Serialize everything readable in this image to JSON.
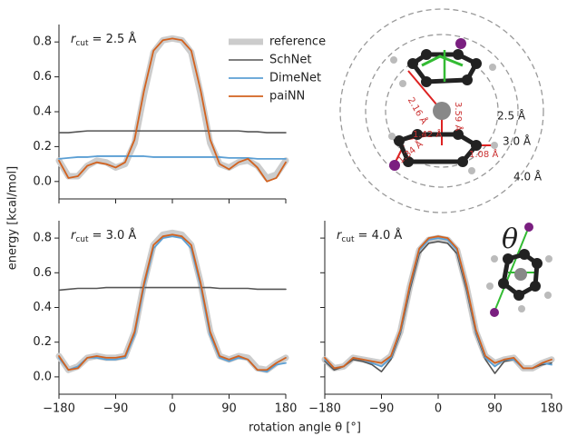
{
  "figure": {
    "ylabel": "energy [kcal/mol]",
    "xlabel": "rotation angle θ [°]",
    "legend_position": "upper right"
  },
  "diagram": {
    "circle_labels": [
      "2.5 Å",
      "3.0 Å",
      "4.0 Å"
    ],
    "bond_labels": [
      "2.16 Å",
      "3.59 Å",
      "1.42 Å",
      "1.34 Å",
      "1.08 Å"
    ]
  },
  "diagram2": {
    "label": "θ"
  },
  "chart_data": [
    {
      "type": "line",
      "annotation": {
        "symbol": "r",
        "subscript": "cut",
        "text": "= 2.5 Å"
      },
      "x": [
        -180,
        -165,
        -150,
        -135,
        -120,
        -105,
        -90,
        -75,
        -60,
        -45,
        -30,
        -15,
        0,
        15,
        30,
        45,
        60,
        75,
        90,
        105,
        120,
        135,
        150,
        165,
        180
      ],
      "xlim": [
        -180,
        180
      ],
      "ylim": [
        -0.1,
        0.9
      ],
      "xticks": [
        -180,
        -90,
        0,
        90,
        180
      ],
      "xtick_labels": false,
      "yticks": [
        {
          "value": 0,
          "label": "0.0"
        },
        0.2,
        0.4,
        0.6,
        0.8
      ],
      "ytick_labels": true,
      "legend": true,
      "series": [
        {
          "name": "reference",
          "color": "#cccccc",
          "width": 7,
          "values": [
            0.12,
            0.03,
            0.03,
            0.09,
            0.12,
            0.11,
            0.08,
            0.1,
            0.22,
            0.5,
            0.74,
            0.81,
            0.82,
            0.81,
            0.74,
            0.5,
            0.22,
            0.1,
            0.08,
            0.11,
            0.12,
            0.09,
            0.02,
            0.04,
            0.12
          ]
        },
        {
          "name": "SchNet",
          "color": "#555555",
          "width": 1.6,
          "values": [
            0.28,
            0.28,
            0.285,
            0.29,
            0.29,
            0.29,
            0.29,
            0.29,
            0.29,
            0.29,
            0.29,
            0.29,
            0.29,
            0.29,
            0.29,
            0.29,
            0.29,
            0.29,
            0.29,
            0.29,
            0.285,
            0.285,
            0.28,
            0.28,
            0.28
          ]
        },
        {
          "name": "DimeNet",
          "color": "#5b9fd4",
          "width": 1.8,
          "values": [
            0.13,
            0.135,
            0.14,
            0.14,
            0.145,
            0.145,
            0.145,
            0.145,
            0.145,
            0.145,
            0.14,
            0.14,
            0.14,
            0.14,
            0.14,
            0.14,
            0.14,
            0.14,
            0.135,
            0.135,
            0.135,
            0.13,
            0.13,
            0.13,
            0.13
          ]
        },
        {
          "name": "paiNN",
          "color": "#d2621f",
          "width": 1.8,
          "values": [
            0.12,
            0.02,
            0.03,
            0.09,
            0.11,
            0.1,
            0.08,
            0.11,
            0.24,
            0.52,
            0.75,
            0.81,
            0.82,
            0.81,
            0.75,
            0.52,
            0.24,
            0.1,
            0.07,
            0.11,
            0.13,
            0.08,
            0.0,
            0.02,
            0.11
          ]
        }
      ]
    },
    {
      "type": "line",
      "annotation": {
        "symbol": "r",
        "subscript": "cut",
        "text": "= 3.0 Å"
      },
      "x": [
        -180,
        -165,
        -150,
        -135,
        -120,
        -105,
        -90,
        -75,
        -60,
        -45,
        -30,
        -15,
        0,
        15,
        30,
        45,
        60,
        75,
        90,
        105,
        120,
        135,
        150,
        165,
        180
      ],
      "xlim": [
        -180,
        180
      ],
      "ylim": [
        -0.1,
        0.9
      ],
      "xticks": [
        {
          "value": -180,
          "label": "−180"
        },
        {
          "value": -90,
          "label": "−90"
        },
        0,
        90,
        180
      ],
      "xtick_labels": true,
      "yticks": [
        {
          "value": 0,
          "label": "0.0"
        },
        0.2,
        0.4,
        0.6,
        0.8
      ],
      "ytick_labels": true,
      "series": [
        {
          "values": [
            0.12,
            0.04,
            0.06,
            0.11,
            0.12,
            0.11,
            0.11,
            0.12,
            0.26,
            0.54,
            0.76,
            0.82,
            0.83,
            0.82,
            0.76,
            0.54,
            0.26,
            0.12,
            0.1,
            0.12,
            0.11,
            0.05,
            0.04,
            0.08,
            0.11
          ]
        },
        {
          "values": [
            0.5,
            0.505,
            0.51,
            0.51,
            0.51,
            0.515,
            0.515,
            0.515,
            0.515,
            0.515,
            0.515,
            0.515,
            0.515,
            0.515,
            0.515,
            0.515,
            0.515,
            0.51,
            0.51,
            0.51,
            0.51,
            0.505,
            0.505,
            0.505,
            0.505
          ]
        },
        {
          "values": [
            0.11,
            0.04,
            0.06,
            0.11,
            0.11,
            0.1,
            0.1,
            0.11,
            0.24,
            0.52,
            0.74,
            0.8,
            0.81,
            0.8,
            0.74,
            0.52,
            0.24,
            0.11,
            0.09,
            0.11,
            0.1,
            0.04,
            0.03,
            0.07,
            0.08
          ]
        },
        {
          "values": [
            0.12,
            0.04,
            0.05,
            0.11,
            0.12,
            0.11,
            0.11,
            0.12,
            0.26,
            0.54,
            0.76,
            0.81,
            0.82,
            0.81,
            0.76,
            0.54,
            0.26,
            0.12,
            0.1,
            0.12,
            0.1,
            0.04,
            0.04,
            0.08,
            0.11
          ]
        }
      ]
    },
    {
      "type": "line",
      "annotation": {
        "symbol": "r",
        "subscript": "cut",
        "text": "= 4.0 Å"
      },
      "x": [
        -180,
        -165,
        -150,
        -135,
        -120,
        -105,
        -90,
        -75,
        -60,
        -45,
        -30,
        -15,
        0,
        15,
        30,
        45,
        60,
        75,
        90,
        105,
        120,
        135,
        150,
        165,
        180
      ],
      "xlim": [
        -180,
        180
      ],
      "ylim": [
        -0.1,
        0.9
      ],
      "xticks": [
        {
          "value": -180,
          "label": "−180"
        },
        {
          "value": -90,
          "label": "−90"
        },
        0,
        90,
        180
      ],
      "xtick_labels": true,
      "yticks": [
        0,
        0.2,
        0.4,
        0.6,
        0.8
      ],
      "ytick_labels": false,
      "series": [
        {
          "values": [
            0.1,
            0.05,
            0.06,
            0.11,
            0.1,
            0.09,
            0.08,
            0.12,
            0.26,
            0.52,
            0.73,
            0.79,
            0.8,
            0.79,
            0.73,
            0.52,
            0.26,
            0.12,
            0.08,
            0.1,
            0.11,
            0.05,
            0.05,
            0.08,
            0.1
          ]
        },
        {
          "values": [
            0.09,
            0.04,
            0.06,
            0.1,
            0.09,
            0.07,
            0.03,
            0.1,
            0.25,
            0.5,
            0.71,
            0.77,
            0.78,
            0.77,
            0.71,
            0.5,
            0.25,
            0.1,
            0.02,
            0.09,
            0.1,
            0.05,
            0.05,
            0.07,
            0.08
          ]
        },
        {
          "values": [
            0.1,
            0.05,
            0.06,
            0.11,
            0.1,
            0.08,
            0.06,
            0.11,
            0.26,
            0.52,
            0.73,
            0.79,
            0.8,
            0.79,
            0.73,
            0.52,
            0.26,
            0.11,
            0.06,
            0.1,
            0.1,
            0.05,
            0.05,
            0.08,
            0.07
          ]
        },
        {
          "values": [
            0.11,
            0.05,
            0.06,
            0.11,
            0.1,
            0.09,
            0.08,
            0.12,
            0.27,
            0.53,
            0.74,
            0.8,
            0.81,
            0.8,
            0.74,
            0.53,
            0.27,
            0.12,
            0.08,
            0.1,
            0.11,
            0.05,
            0.05,
            0.08,
            0.1
          ]
        }
      ]
    }
  ]
}
